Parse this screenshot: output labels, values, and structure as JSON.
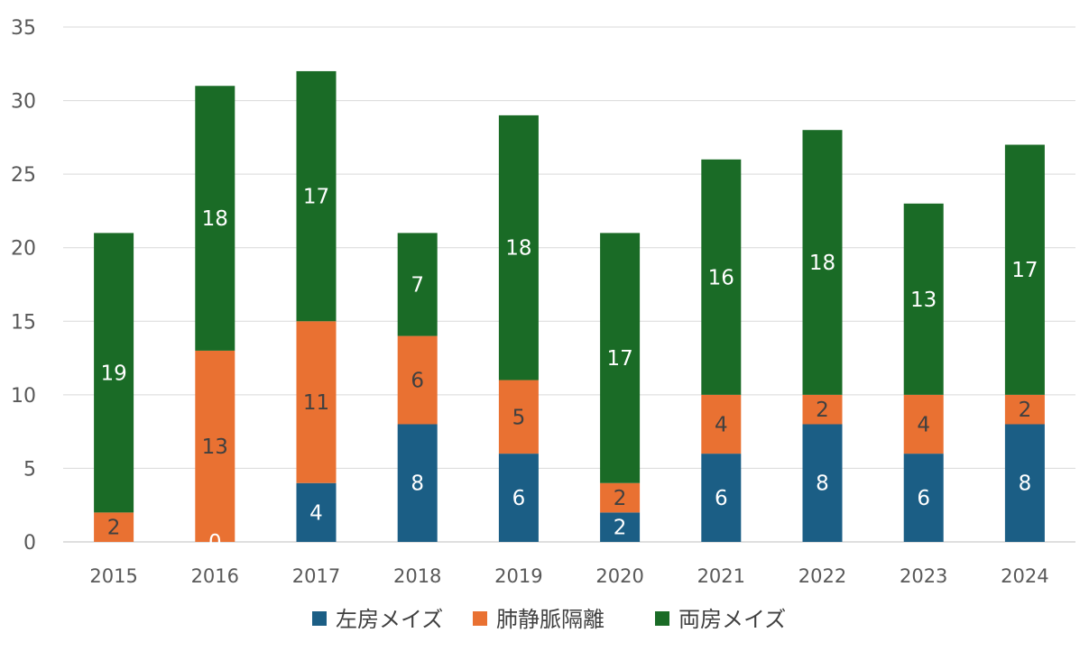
{
  "chart_data": {
    "type": "bar",
    "stacked": true,
    "categories": [
      "2015",
      "2016",
      "2017",
      "2018",
      "2019",
      "2020",
      "2021",
      "2022",
      "2023",
      "2024"
    ],
    "series": [
      {
        "name": "左房メイズ",
        "color": "#1b5e85",
        "label_color": "#ffffff",
        "values": [
          0,
          0,
          4,
          8,
          6,
          2,
          6,
          8,
          6,
          8
        ]
      },
      {
        "name": "肺静脈隔離",
        "color": "#e97132",
        "label_color": "#404040",
        "values": [
          2,
          13,
          11,
          6,
          5,
          2,
          4,
          2,
          4,
          2
        ]
      },
      {
        "name": "両房メイズ",
        "color": "#1a6b26",
        "label_color": "#ffffff",
        "values": [
          19,
          18,
          17,
          7,
          18,
          17,
          16,
          18,
          13,
          17
        ]
      }
    ],
    "data_labels": {
      "左房メイズ": [
        "",
        "0",
        "4",
        "8",
        "6",
        "2",
        "6",
        "8",
        "6",
        "8"
      ],
      "肺静脈隔離": [
        "2",
        "13",
        "11",
        "6",
        "5",
        "2",
        "4",
        "2",
        "4",
        "2"
      ],
      "両房メイズ": [
        "19",
        "18",
        "17",
        "7",
        "18",
        "17",
        "16",
        "18",
        "13",
        "17"
      ]
    },
    "ylim": [
      0,
      35
    ],
    "yticks": [
      0,
      5,
      10,
      15,
      20,
      25,
      30,
      35
    ],
    "grid": true,
    "legend": "bottom",
    "title": "",
    "xlabel": "",
    "ylabel": ""
  }
}
